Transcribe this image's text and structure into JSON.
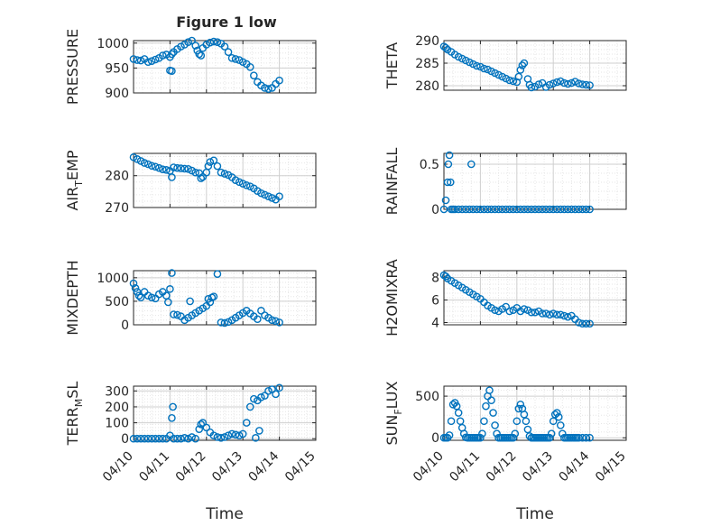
{
  "figure": {
    "title": "Figure 1 low"
  },
  "x_tick_labels": [
    "04/10",
    "04/11",
    "04/12",
    "04/13",
    "04/14",
    "04/15"
  ],
  "colors": {
    "marker": "#0072BD",
    "axis": "#262626",
    "grid": "#bdbdbd"
  },
  "chart_data": [
    {
      "type": "scatter",
      "title": "Figure 1 low",
      "ylabel": "PRESSURE",
      "xlabel": "",
      "xlim": [
        0,
        5
      ],
      "ylim": [
        900,
        1005
      ],
      "yticks": [
        900,
        950,
        1000
      ],
      "ytick_labels": [
        "900",
        "950",
        "1000"
      ],
      "grid": true,
      "marker": "circle",
      "x": [
        0.0,
        0.1,
        0.2,
        0.3,
        0.4,
        0.5,
        0.6,
        0.7,
        0.8,
        0.9,
        1.0,
        1.05,
        1.1,
        1.2,
        1.3,
        1.4,
        1.5,
        1.6,
        1.7,
        1.75,
        1.8,
        1.85,
        1.9,
        2.0,
        2.1,
        2.2,
        2.3,
        2.4,
        2.5,
        2.6,
        2.7,
        2.8,
        2.9,
        3.0,
        3.1,
        3.2,
        3.3,
        3.4,
        3.5,
        3.6,
        3.7,
        3.8,
        3.9,
        4.0,
        1.0,
        1.05
      ],
      "y": [
        968,
        966,
        965,
        968,
        962,
        964,
        967,
        970,
        975,
        977,
        972,
        978,
        982,
        988,
        993,
        997,
        1002,
        1005,
        995,
        985,
        978,
        975,
        990,
        997,
        1001,
        1003,
        1002,
        999,
        993,
        982,
        970,
        968,
        966,
        962,
        958,
        952,
        935,
        922,
        915,
        910,
        908,
        910,
        918,
        925,
        945,
        944
      ]
    },
    {
      "type": "scatter",
      "title": "",
      "ylabel": "THETA",
      "xlabel": "",
      "xlim": [
        0,
        5
      ],
      "ylim": [
        279,
        290
      ],
      "yticks": [
        280,
        285,
        290
      ],
      "ytick_labels": [
        "280",
        "285",
        "290"
      ],
      "grid": true,
      "marker": "circle",
      "x": [
        0.0,
        0.05,
        0.1,
        0.2,
        0.3,
        0.4,
        0.5,
        0.6,
        0.7,
        0.8,
        0.9,
        1.0,
        1.1,
        1.2,
        1.3,
        1.4,
        1.5,
        1.6,
        1.7,
        1.8,
        1.9,
        2.0,
        2.05,
        2.1,
        2.15,
        2.2,
        2.3,
        2.35,
        2.4,
        2.5,
        2.6,
        2.7,
        2.8,
        2.9,
        3.0,
        3.1,
        3.2,
        3.3,
        3.4,
        3.5,
        3.6,
        3.7,
        3.8,
        3.9,
        4.0
      ],
      "y": [
        288.7,
        288.4,
        288.0,
        287.5,
        286.9,
        286.4,
        286.0,
        285.6,
        285.2,
        284.8,
        284.4,
        284.2,
        283.8,
        283.6,
        283.2,
        282.8,
        282.4,
        282.0,
        281.6,
        281.2,
        281.0,
        280.8,
        282.0,
        283.5,
        284.5,
        285.0,
        281.5,
        280.2,
        279.6,
        279.8,
        280.3,
        280.6,
        279.7,
        280.2,
        280.5,
        280.8,
        281.0,
        280.6,
        280.4,
        280.6,
        280.9,
        280.5,
        280.3,
        280.2,
        280.1
      ]
    },
    {
      "type": "scatter",
      "title": "",
      "ylabel": "AIR_TEMP",
      "ylabel_display": "AIRTEMP",
      "ylabel_main": "AIR",
      "ylabel_sub": "T",
      "ylabel_rest": "EMP",
      "xlabel": "",
      "xlim": [
        0,
        5
      ],
      "ylim": [
        270,
        287
      ],
      "yticks": [
        270,
        280
      ],
      "ytick_labels": [
        "270",
        "280"
      ],
      "grid": true,
      "marker": "circle",
      "x": [
        0.0,
        0.1,
        0.2,
        0.3,
        0.4,
        0.5,
        0.6,
        0.7,
        0.8,
        0.9,
        1.0,
        1.05,
        1.1,
        1.2,
        1.3,
        1.4,
        1.5,
        1.6,
        1.7,
        1.8,
        1.85,
        1.9,
        2.0,
        2.05,
        2.1,
        2.2,
        2.3,
        2.4,
        2.5,
        2.6,
        2.7,
        2.8,
        2.9,
        3.0,
        3.1,
        3.2,
        3.3,
        3.4,
        3.5,
        3.6,
        3.7,
        3.8,
        3.9,
        4.0
      ],
      "y": [
        285.8,
        285.2,
        284.6,
        284.0,
        283.6,
        283.1,
        282.8,
        282.4,
        282.0,
        281.8,
        281.5,
        279.5,
        282.6,
        282.4,
        282.3,
        282.2,
        282.1,
        281.6,
        281.0,
        280.8,
        279.2,
        279.6,
        281.0,
        283.0,
        284.3,
        284.8,
        283.0,
        281.0,
        280.6,
        280.2,
        279.5,
        278.6,
        278.0,
        277.5,
        277.0,
        276.6,
        276.0,
        275.2,
        274.5,
        274.0,
        273.5,
        273.0,
        272.5,
        273.5
      ]
    },
    {
      "type": "scatter",
      "title": "",
      "ylabel": "RAINFALL",
      "xlabel": "",
      "xlim": [
        0,
        5
      ],
      "ylim": [
        0,
        0.62
      ],
      "yticks": [
        0,
        0.5
      ],
      "ytick_labels": [
        "0",
        "0.5"
      ],
      "grid": true,
      "marker": "circle",
      "x": [
        0.0,
        0.05,
        0.1,
        0.12,
        0.15,
        0.18,
        0.2,
        0.25,
        0.3,
        0.4,
        0.5,
        0.6,
        0.7,
        0.8,
        0.9,
        1.0,
        1.1,
        1.2,
        1.3,
        1.4,
        1.5,
        1.6,
        1.7,
        1.8,
        1.9,
        2.0,
        2.1,
        2.2,
        2.3,
        2.4,
        2.5,
        2.6,
        2.7,
        2.8,
        2.9,
        3.0,
        3.1,
        3.2,
        3.3,
        3.4,
        3.5,
        3.6,
        3.7,
        3.8,
        3.9,
        4.0,
        0.75
      ],
      "y": [
        0,
        0.1,
        0.3,
        0.5,
        0.6,
        0.3,
        0,
        0,
        0,
        0,
        0,
        0,
        0,
        0,
        0,
        0,
        0,
        0,
        0,
        0,
        0,
        0,
        0,
        0,
        0,
        0,
        0,
        0,
        0,
        0,
        0,
        0,
        0,
        0,
        0,
        0,
        0,
        0,
        0,
        0,
        0,
        0,
        0,
        0,
        0,
        0,
        0.5
      ]
    },
    {
      "type": "scatter",
      "title": "",
      "ylabel": "MIXDEPTH",
      "xlabel": "",
      "xlim": [
        0,
        5
      ],
      "ylim": [
        0,
        1150
      ],
      "yticks": [
        0,
        500,
        1000
      ],
      "ytick_labels": [
        "0",
        "500",
        "1000"
      ],
      "grid": true,
      "marker": "circle",
      "x": [
        0.0,
        0.05,
        0.1,
        0.15,
        0.2,
        0.3,
        0.4,
        0.5,
        0.6,
        0.7,
        0.8,
        0.9,
        0.95,
        1.0,
        1.05,
        1.1,
        1.2,
        1.3,
        1.4,
        1.5,
        1.6,
        1.7,
        1.8,
        1.9,
        2.0,
        2.05,
        2.1,
        2.15,
        2.2,
        2.3,
        2.4,
        2.5,
        2.6,
        2.7,
        2.8,
        2.9,
        3.0,
        3.1,
        3.2,
        3.3,
        3.4,
        3.5,
        3.6,
        3.7,
        3.8,
        3.9,
        4.0,
        1.55
      ],
      "y": [
        880,
        780,
        700,
        620,
        580,
        700,
        620,
        580,
        560,
        650,
        700,
        620,
        480,
        760,
        1100,
        220,
        210,
        180,
        100,
        150,
        200,
        250,
        300,
        350,
        400,
        550,
        480,
        580,
        600,
        1080,
        50,
        40,
        60,
        100,
        150,
        200,
        250,
        300,
        240,
        180,
        120,
        300,
        200,
        150,
        100,
        80,
        50,
        500
      ]
    },
    {
      "type": "scatter",
      "title": "",
      "ylabel": "H2OMIXRA",
      "xlabel": "",
      "xlim": [
        0,
        5
      ],
      "ylim": [
        3.8,
        8.6
      ],
      "yticks": [
        4,
        6,
        8
      ],
      "ytick_labels": [
        "4",
        "6",
        "8"
      ],
      "grid": true,
      "marker": "circle",
      "x": [
        0.0,
        0.05,
        0.1,
        0.2,
        0.3,
        0.4,
        0.5,
        0.6,
        0.7,
        0.8,
        0.9,
        1.0,
        1.1,
        1.2,
        1.3,
        1.4,
        1.5,
        1.6,
        1.7,
        1.8,
        1.9,
        2.0,
        2.1,
        2.2,
        2.3,
        2.4,
        2.5,
        2.6,
        2.7,
        2.8,
        2.9,
        3.0,
        3.1,
        3.2,
        3.3,
        3.4,
        3.5,
        3.6,
        3.7,
        3.8,
        3.9,
        4.0
      ],
      "y": [
        8.2,
        8.1,
        7.9,
        7.7,
        7.5,
        7.3,
        7.1,
        6.9,
        6.7,
        6.5,
        6.3,
        6.1,
        5.8,
        5.5,
        5.3,
        5.1,
        5.0,
        5.2,
        5.4,
        5.0,
        5.1,
        5.3,
        5.0,
        5.2,
        5.1,
        4.9,
        4.9,
        5.0,
        4.8,
        4.8,
        4.7,
        4.8,
        4.7,
        4.7,
        4.6,
        4.5,
        4.6,
        4.3,
        4.0,
        3.9,
        3.9,
        3.9
      ]
    },
    {
      "type": "scatter",
      "title": "",
      "ylabel": "TERR_MSL",
      "ylabel_display": "TERRMSL",
      "ylabel_main": "TERR",
      "ylabel_sub": "M",
      "ylabel_rest": "SL",
      "xlabel": "Time",
      "xlim": [
        0,
        5
      ],
      "ylim": [
        -10,
        330
      ],
      "yticks": [
        0,
        100,
        200,
        300
      ],
      "ytick_labels": [
        "0",
        "100",
        "200",
        "300"
      ],
      "grid": true,
      "marker": "circle",
      "x": [
        0.0,
        0.1,
        0.2,
        0.3,
        0.4,
        0.5,
        0.6,
        0.7,
        0.8,
        0.9,
        1.0,
        1.05,
        1.08,
        1.1,
        1.2,
        1.3,
        1.4,
        1.5,
        1.6,
        1.7,
        1.8,
        1.85,
        1.9,
        2.0,
        2.1,
        2.2,
        2.3,
        2.4,
        2.5,
        2.6,
        2.7,
        2.8,
        2.9,
        3.0,
        3.1,
        3.2,
        3.3,
        3.4,
        3.5,
        3.6,
        3.7,
        3.8,
        3.9,
        4.0,
        3.35,
        3.45
      ],
      "y": [
        0,
        0,
        0,
        0,
        0,
        0,
        0,
        0,
        0,
        0,
        20,
        130,
        200,
        0,
        0,
        0,
        5,
        0,
        10,
        0,
        60,
        90,
        100,
        70,
        40,
        20,
        10,
        5,
        10,
        20,
        30,
        25,
        20,
        30,
        100,
        200,
        250,
        240,
        260,
        270,
        300,
        310,
        280,
        320,
        5,
        50
      ]
    },
    {
      "type": "scatter",
      "title": "",
      "ylabel": "SUN_FLUX",
      "ylabel_display": "SUNFLUX",
      "ylabel_main": "SUN",
      "ylabel_sub": "F",
      "ylabel_rest": "LUX",
      "xlabel": "Time",
      "xlim": [
        0,
        5
      ],
      "ylim": [
        -30,
        620
      ],
      "yticks": [
        0,
        500
      ],
      "ytick_labels": [
        "0",
        "500"
      ],
      "grid": true,
      "marker": "circle",
      "x": [
        0.0,
        0.05,
        0.1,
        0.15,
        0.2,
        0.25,
        0.3,
        0.35,
        0.4,
        0.45,
        0.5,
        0.55,
        0.6,
        0.65,
        0.7,
        0.75,
        0.8,
        0.85,
        0.9,
        0.95,
        1.0,
        1.05,
        1.1,
        1.15,
        1.2,
        1.25,
        1.3,
        1.35,
        1.4,
        1.45,
        1.5,
        1.55,
        1.6,
        1.65,
        1.7,
        1.75,
        1.8,
        1.85,
        1.9,
        1.95,
        2.0,
        2.05,
        2.1,
        2.15,
        2.2,
        2.25,
        2.3,
        2.35,
        2.4,
        2.45,
        2.5,
        2.55,
        2.6,
        2.65,
        2.7,
        2.75,
        2.8,
        2.85,
        2.9,
        2.95,
        3.0,
        3.05,
        3.1,
        3.15,
        3.2,
        3.25,
        3.3,
        3.35,
        3.4,
        3.45,
        3.5,
        3.55,
        3.6,
        3.65,
        3.7,
        3.8,
        3.9,
        4.0
      ],
      "y": [
        0,
        0,
        0,
        30,
        200,
        400,
        420,
        380,
        300,
        200,
        120,
        50,
        5,
        0,
        0,
        0,
        0,
        0,
        0,
        0,
        0,
        50,
        200,
        380,
        500,
        570,
        450,
        300,
        150,
        50,
        0,
        0,
        0,
        0,
        0,
        0,
        0,
        0,
        0,
        50,
        200,
        350,
        400,
        350,
        280,
        200,
        100,
        20,
        0,
        0,
        0,
        0,
        0,
        0,
        0,
        0,
        0,
        0,
        0,
        50,
        200,
        280,
        300,
        250,
        150,
        50,
        0,
        0,
        0,
        0,
        0,
        0,
        0,
        0,
        0,
        0,
        0,
        0
      ]
    }
  ]
}
